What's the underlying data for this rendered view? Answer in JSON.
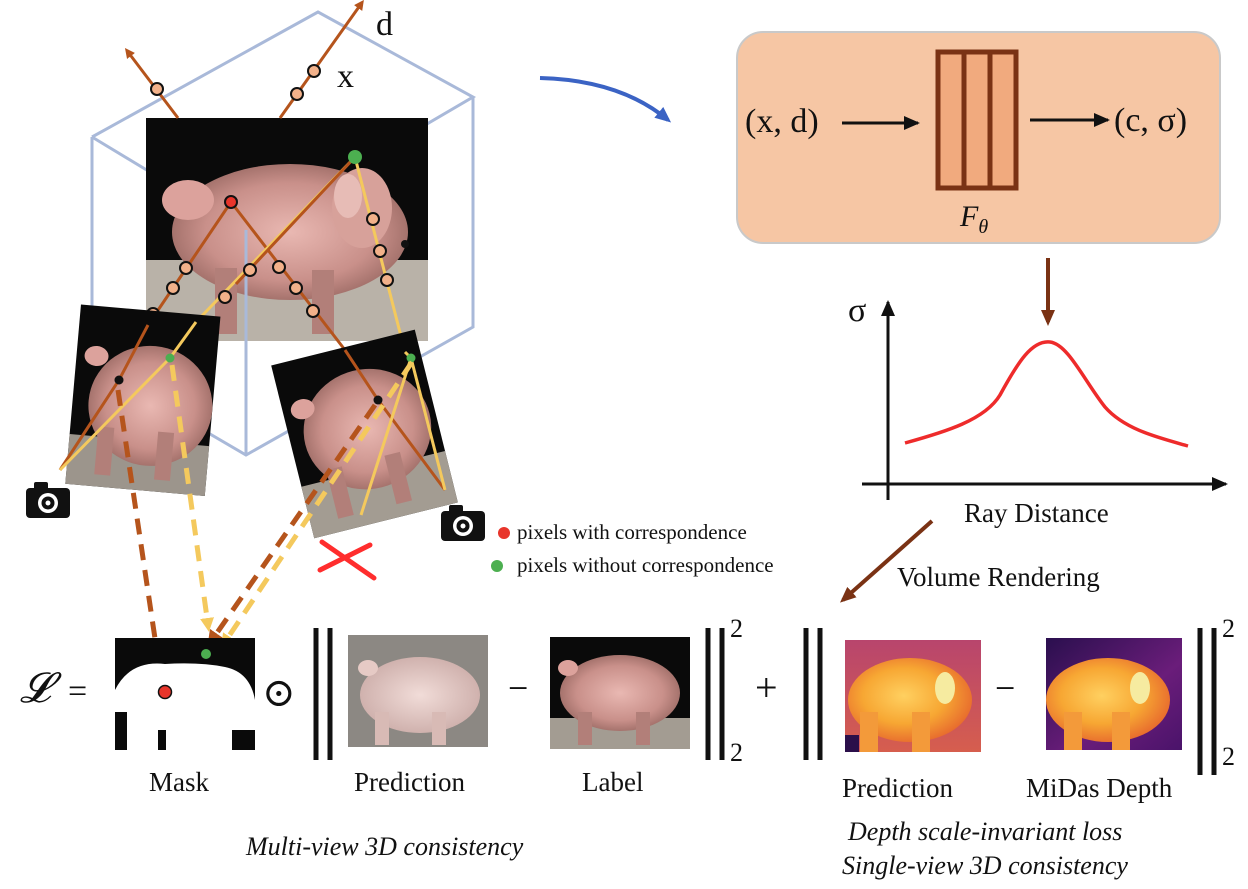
{
  "top": {
    "ray_dir_label": "d",
    "ray_pos_label": "x",
    "network_input": "(x, d)",
    "network_output": "(c, σ)",
    "network_name": "F",
    "network_name_sub": "θ"
  },
  "plot": {
    "y_axis_label": "σ",
    "x_axis_label": "Ray Distance",
    "step_label": "Volume Rendering"
  },
  "legend": {
    "with_correspondence": "pixels with correspondence",
    "without_correspondence": "pixels without correspondence"
  },
  "equation": {
    "loss_symbol": "𝓛",
    "equals": "=",
    "hadamard": "⊙",
    "minus": "−",
    "plus": "+",
    "exponent": "2",
    "subscript": "2",
    "mask_label": "Mask",
    "prediction_label": "Prediction",
    "label_label": "Label",
    "depth_prediction_label": "Prediction",
    "midas_label": "MiDas Depth"
  },
  "captions": {
    "multi_view": "Multi-view 3D consistency",
    "depth_loss": "Depth scale-invariant loss",
    "single_view": "Single-view 3D consistency"
  },
  "colors": {
    "ray_brown": "#b5541c",
    "ray_yellow": "#f4c95d",
    "network_box": "#f6c6a4",
    "network_layers": "#7a3214",
    "curve_red": "#ee2b2b",
    "arrow_blue": "#3b63c4",
    "cube_edge": "#a9b9d9",
    "cross_red": "#ff2d2d",
    "dot_red": "#e8352b",
    "dot_green": "#4caf50"
  },
  "icons": [
    "camera-icon",
    "camera-icon",
    "red-cross-icon"
  ]
}
